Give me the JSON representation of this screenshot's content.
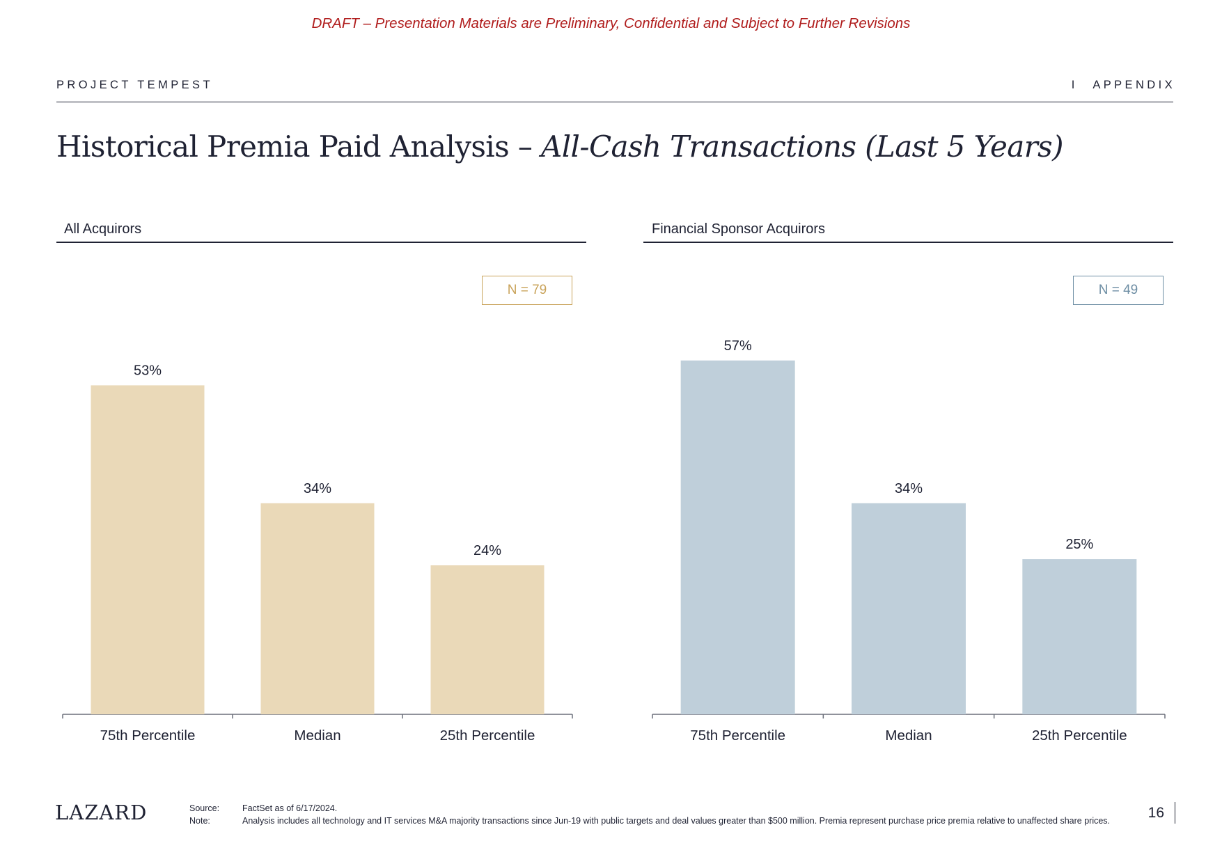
{
  "banner": "DRAFT – Presentation Materials are Preliminary, Confidential and Subject to Further Revisions",
  "header": {
    "project": "PROJECT TEMPEST",
    "separator": "I",
    "section": "APPENDIX"
  },
  "title": {
    "main": "Historical Premia Paid Analysis – ",
    "italic": "All-Cash Transactions (Last 5 Years)"
  },
  "panels": [
    {
      "title": "All Acquirors",
      "n_label": "N = 79",
      "color": "#ead9b8",
      "accent": "#c9a35a"
    },
    {
      "title": "Financial Sponsor Acquirors",
      "n_label": "N = 49",
      "color": "#bfcfda",
      "accent": "#6e8ea4"
    }
  ],
  "chart_data": [
    {
      "type": "bar",
      "title": "All Acquirors",
      "categories": [
        "75th Percentile",
        "Median",
        "25th Percentile"
      ],
      "values": [
        53,
        34,
        24
      ],
      "labels": [
        "53%",
        "34%",
        "24%"
      ],
      "unit": "%",
      "ylim": [
        0,
        60
      ],
      "grid": false
    },
    {
      "type": "bar",
      "title": "Financial Sponsor Acquirors",
      "categories": [
        "75th Percentile",
        "Median",
        "25th Percentile"
      ],
      "values": [
        57,
        34,
        25
      ],
      "labels": [
        "57%",
        "34%",
        "25%"
      ],
      "unit": "%",
      "ylim": [
        0,
        60
      ],
      "grid": false
    }
  ],
  "footer": {
    "logo": "LAZARD",
    "source_label": "Source:",
    "source_text": "FactSet as of 6/17/2024.",
    "note_label": "Note:",
    "note_text": "Analysis includes all technology and IT services M&A majority transactions since Jun-19 with public targets and deal values greater than $500 million. Premia represent purchase price premia relative to unaffected share prices.",
    "page": "16"
  }
}
